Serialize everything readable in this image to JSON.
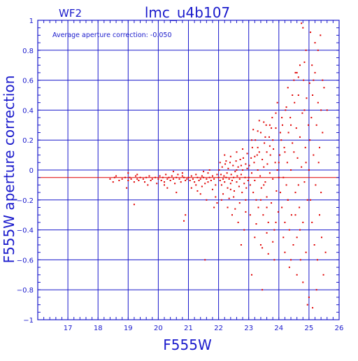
{
  "colors": {
    "axes": "#1a1acc",
    "grid": "#1a1acc",
    "points": "#e00000",
    "mean_line": "#e00000",
    "background": "#ffffff"
  },
  "chart_data": {
    "type": "scatter",
    "panel_label": "WF2",
    "title": "lmc_u4b107",
    "annotation": "Average aperture correction: -0.050",
    "xlabel": "F555W",
    "ylabel": "F555W aperture correction",
    "xlim": [
      16,
      26
    ],
    "ylim": [
      -1,
      1
    ],
    "xticks": [
      17,
      18,
      19,
      20,
      21,
      22,
      23,
      24,
      25,
      26
    ],
    "yticks": [
      -1,
      -0.8,
      -0.6,
      -0.4,
      -0.2,
      0,
      0.2,
      0.4,
      0.6,
      0.8,
      1
    ],
    "ytick_labels": [
      "−1",
      "−0.8",
      "−0.6",
      "−0.4",
      "−0.2",
      "0",
      "0.2",
      "0.4",
      "0.6",
      "0.8",
      "1"
    ],
    "grid": true,
    "mean_line_y": -0.05,
    "points": [
      [
        18.4,
        -0.06
      ],
      [
        18.5,
        -0.08
      ],
      [
        18.55,
        -0.05
      ],
      [
        18.6,
        -0.04
      ],
      [
        18.7,
        -0.07
      ],
      [
        18.8,
        -0.06
      ],
      [
        18.9,
        -0.05
      ],
      [
        19.0,
        -0.07
      ],
      [
        19.05,
        -0.05
      ],
      [
        19.1,
        -0.06
      ],
      [
        19.2,
        -0.08
      ],
      [
        19.25,
        -0.04
      ],
      [
        19.3,
        -0.06
      ],
      [
        19.35,
        -0.07
      ],
      [
        19.4,
        -0.05
      ],
      [
        19.5,
        -0.06
      ],
      [
        19.55,
        -0.08
      ],
      [
        19.6,
        -0.05
      ],
      [
        19.7,
        -0.04
      ],
      [
        19.75,
        -0.07
      ],
      [
        19.8,
        -0.06
      ],
      [
        19.9,
        -0.05
      ],
      [
        19.95,
        -0.09
      ],
      [
        19.0,
        -0.02
      ],
      [
        19.3,
        -0.03
      ],
      [
        19.65,
        -0.1
      ],
      [
        19.2,
        -0.23
      ],
      [
        18.95,
        -0.12
      ],
      [
        20.0,
        -0.06
      ],
      [
        20.05,
        -0.04
      ],
      [
        20.1,
        -0.07
      ],
      [
        20.15,
        -0.05
      ],
      [
        20.2,
        -0.08
      ],
      [
        20.25,
        -0.03
      ],
      [
        20.3,
        -0.06
      ],
      [
        20.35,
        -0.05
      ],
      [
        20.4,
        -0.07
      ],
      [
        20.45,
        -0.04
      ],
      [
        20.5,
        -0.06
      ],
      [
        20.55,
        -0.09
      ],
      [
        20.6,
        -0.05
      ],
      [
        20.65,
        -0.03
      ],
      [
        20.7,
        -0.06
      ],
      [
        20.75,
        -0.08
      ],
      [
        20.8,
        -0.04
      ],
      [
        20.85,
        -0.05
      ],
      [
        20.9,
        -0.07
      ],
      [
        20.95,
        -0.06
      ],
      [
        20.3,
        -0.12
      ],
      [
        20.6,
        -0.15
      ],
      [
        20.8,
        -0.02
      ],
      [
        20.5,
        -0.01
      ],
      [
        20.9,
        -0.3
      ],
      [
        20.85,
        -0.34
      ],
      [
        20.2,
        -0.1
      ],
      [
        21.0,
        -0.05
      ],
      [
        21.05,
        -0.07
      ],
      [
        21.1,
        -0.04
      ],
      [
        21.15,
        -0.06
      ],
      [
        21.2,
        -0.08
      ],
      [
        21.25,
        -0.03
      ],
      [
        21.3,
        -0.05
      ],
      [
        21.35,
        -0.07
      ],
      [
        21.4,
        -0.06
      ],
      [
        21.45,
        -0.04
      ],
      [
        21.5,
        -0.05
      ],
      [
        21.55,
        -0.09
      ],
      [
        21.6,
        -0.06
      ],
      [
        21.65,
        -0.02
      ],
      [
        21.7,
        -0.05
      ],
      [
        21.75,
        -0.07
      ],
      [
        21.8,
        -0.04
      ],
      [
        21.85,
        -0.06
      ],
      [
        21.9,
        -0.1
      ],
      [
        21.95,
        -0.03
      ],
      [
        21.1,
        -0.12
      ],
      [
        21.3,
        -0.14
      ],
      [
        21.5,
        -0.01
      ],
      [
        21.7,
        0.0
      ],
      [
        21.4,
        -0.16
      ],
      [
        21.6,
        -0.2
      ],
      [
        21.8,
        -0.13
      ],
      [
        21.9,
        -0.18
      ],
      [
        21.25,
        -0.1
      ],
      [
        21.45,
        -0.11
      ],
      [
        21.55,
        -0.6
      ],
      [
        21.85,
        -0.25
      ],
      [
        21.65,
        -0.08
      ],
      [
        21.95,
        -0.22
      ],
      [
        22.0,
        -0.05
      ],
      [
        22.02,
        0.0
      ],
      [
        22.05,
        -0.07
      ],
      [
        22.08,
        -0.03
      ],
      [
        22.1,
        -0.1
      ],
      [
        22.12,
        0.02
      ],
      [
        22.15,
        -0.06
      ],
      [
        22.18,
        -0.04
      ],
      [
        22.2,
        -0.08
      ],
      [
        22.22,
        0.04
      ],
      [
        22.25,
        -0.05
      ],
      [
        22.28,
        -0.02
      ],
      [
        22.3,
        -0.12
      ],
      [
        22.32,
        0.01
      ],
      [
        22.35,
        -0.06
      ],
      [
        22.38,
        0.05
      ],
      [
        22.4,
        -0.09
      ],
      [
        22.42,
        -0.03
      ],
      [
        22.45,
        -0.07
      ],
      [
        22.48,
        0.03
      ],
      [
        22.5,
        -0.05
      ],
      [
        22.52,
        -0.14
      ],
      [
        22.55,
        -0.01
      ],
      [
        22.58,
        0.06
      ],
      [
        22.6,
        -0.08
      ],
      [
        22.62,
        -0.04
      ],
      [
        22.65,
        0.02
      ],
      [
        22.68,
        -0.11
      ],
      [
        22.7,
        -0.06
      ],
      [
        22.72,
        0.07
      ],
      [
        22.75,
        -0.03
      ],
      [
        22.78,
        -0.15
      ],
      [
        22.8,
        0.0
      ],
      [
        22.82,
        0.08
      ],
      [
        22.85,
        -0.09
      ],
      [
        22.88,
        -0.05
      ],
      [
        22.9,
        0.04
      ],
      [
        22.92,
        -0.12
      ],
      [
        22.95,
        0.01
      ],
      [
        22.98,
        -0.07
      ],
      [
        22.1,
        -0.2
      ],
      [
        22.3,
        -0.25
      ],
      [
        22.5,
        -0.18
      ],
      [
        22.7,
        -0.22
      ],
      [
        22.9,
        -0.28
      ],
      [
        22.2,
        0.1
      ],
      [
        22.4,
        0.09
      ],
      [
        22.6,
        0.12
      ],
      [
        22.8,
        0.14
      ],
      [
        22.95,
        0.11
      ],
      [
        22.15,
        -0.16
      ],
      [
        22.45,
        -0.3
      ],
      [
        22.65,
        -0.35
      ],
      [
        22.85,
        -0.4
      ],
      [
        22.75,
        -0.5
      ],
      [
        22.55,
        -0.26
      ],
      [
        22.35,
        -0.19
      ],
      [
        22.05,
        0.05
      ],
      [
        22.25,
        0.06
      ],
      [
        22.75,
        0.03
      ],
      [
        22.9,
        -0.2
      ],
      [
        22.6,
        0.0
      ],
      [
        22.4,
        -0.13
      ],
      [
        23.0,
        -0.05
      ],
      [
        23.02,
        0.03
      ],
      [
        23.05,
        -0.1
      ],
      [
        23.08,
        0.08
      ],
      [
        23.1,
        -0.02
      ],
      [
        23.12,
        0.15
      ],
      [
        23.15,
        -0.15
      ],
      [
        23.18,
        0.05
      ],
      [
        23.2,
        -0.07
      ],
      [
        23.22,
        0.2
      ],
      [
        23.25,
        -0.2
      ],
      [
        23.28,
        0.1
      ],
      [
        23.3,
        0.0
      ],
      [
        23.32,
        -0.25
      ],
      [
        23.35,
        0.12
      ],
      [
        23.38,
        -0.04
      ],
      [
        23.4,
        0.25
      ],
      [
        23.42,
        -0.12
      ],
      [
        23.45,
        0.07
      ],
      [
        23.48,
        -0.3
      ],
      [
        23.5,
        0.02
      ],
      [
        23.52,
        0.18
      ],
      [
        23.55,
        -0.08
      ],
      [
        23.58,
        0.3
      ],
      [
        23.6,
        -0.18
      ],
      [
        23.62,
        0.04
      ],
      [
        23.65,
        -0.35
      ],
      [
        23.68,
        0.22
      ],
      [
        23.7,
        -0.02
      ],
      [
        23.72,
        0.1
      ],
      [
        23.75,
        -0.22
      ],
      [
        23.78,
        0.35
      ],
      [
        23.8,
        -0.06
      ],
      [
        23.82,
        0.14
      ],
      [
        23.85,
        -0.4
      ],
      [
        23.88,
        0.05
      ],
      [
        23.9,
        0.28
      ],
      [
        23.92,
        -0.14
      ],
      [
        23.95,
        0.0
      ],
      [
        23.98,
        -0.28
      ],
      [
        23.1,
        0.2
      ],
      [
        23.3,
        0.26
      ],
      [
        23.5,
        0.32
      ],
      [
        23.7,
        0.3
      ],
      [
        23.9,
        0.38
      ],
      [
        23.2,
        -0.45
      ],
      [
        23.4,
        -0.5
      ],
      [
        23.6,
        -0.42
      ],
      [
        23.8,
        -0.48
      ],
      [
        23.15,
        0.27
      ],
      [
        23.35,
        0.33
      ],
      [
        23.55,
        0.22
      ],
      [
        23.75,
        0.28
      ],
      [
        23.95,
        0.45
      ],
      [
        23.05,
        -0.3
      ],
      [
        23.25,
        -0.36
      ],
      [
        23.45,
        -0.52
      ],
      [
        23.65,
        -0.56
      ],
      [
        23.85,
        -0.6
      ],
      [
        23.1,
        -0.7
      ],
      [
        23.45,
        -0.8
      ],
      [
        23.6,
        -0.25
      ],
      [
        23.3,
        0.15
      ],
      [
        23.9,
        -0.35
      ],
      [
        23.7,
        0.16
      ],
      [
        23.5,
        -0.1
      ],
      [
        23.2,
        0.09
      ],
      [
        23.4,
        -0.2
      ],
      [
        23.8,
        0.2
      ],
      [
        23.6,
        0.12
      ],
      [
        24.0,
        -0.05
      ],
      [
        24.03,
        0.1
      ],
      [
        24.05,
        -0.15
      ],
      [
        24.08,
        0.2
      ],
      [
        24.1,
        -0.25
      ],
      [
        24.12,
        0.3
      ],
      [
        24.15,
        -0.05
      ],
      [
        24.18,
        0.15
      ],
      [
        24.2,
        -0.35
      ],
      [
        24.22,
        0.4
      ],
      [
        24.25,
        -0.1
      ],
      [
        24.28,
        0.05
      ],
      [
        24.3,
        -0.2
      ],
      [
        24.32,
        0.25
      ],
      [
        24.35,
        -0.4
      ],
      [
        24.38,
        0.35
      ],
      [
        24.4,
        0.0
      ],
      [
        24.42,
        -0.3
      ],
      [
        24.45,
        0.18
      ],
      [
        24.48,
        -0.5
      ],
      [
        24.5,
        0.12
      ],
      [
        24.52,
        0.45
      ],
      [
        24.55,
        -0.15
      ],
      [
        24.58,
        0.28
      ],
      [
        24.6,
        -0.45
      ],
      [
        24.62,
        0.08
      ],
      [
        24.65,
        0.5
      ],
      [
        24.68,
        -0.25
      ],
      [
        24.7,
        0.22
      ],
      [
        24.72,
        -0.6
      ],
      [
        24.75,
        0.02
      ],
      [
        24.78,
        0.38
      ],
      [
        24.8,
        -0.35
      ],
      [
        24.82,
        0.6
      ],
      [
        24.85,
        -0.08
      ],
      [
        24.88,
        0.15
      ],
      [
        24.9,
        -0.55
      ],
      [
        24.92,
        0.48
      ],
      [
        24.95,
        -0.2
      ],
      [
        24.98,
        0.3
      ],
      [
        24.1,
        0.35
      ],
      [
        24.3,
        0.55
      ],
      [
        24.5,
        0.6
      ],
      [
        24.7,
        0.7
      ],
      [
        24.9,
        0.8
      ],
      [
        24.2,
        -0.55
      ],
      [
        24.4,
        -0.6
      ],
      [
        24.6,
        -0.7
      ],
      [
        24.8,
        -0.75
      ],
      [
        24.95,
        -0.9
      ],
      [
        24.25,
        0.42
      ],
      [
        24.45,
        0.5
      ],
      [
        24.65,
        0.62
      ],
      [
        24.85,
        0.72
      ],
      [
        24.75,
        0.98
      ],
      [
        24.6,
        0.65
      ],
      [
        24.35,
        -0.65
      ],
      [
        24.55,
        -0.3
      ],
      [
        24.15,
        -0.45
      ],
      [
        24.05,
        0.25
      ],
      [
        24.7,
        -0.4
      ],
      [
        24.9,
        0.05
      ],
      [
        24.0,
        0.05
      ],
      [
        24.8,
        0.95
      ],
      [
        24.85,
        0.4
      ],
      [
        24.65,
        -0.1
      ],
      [
        24.4,
        0.3
      ],
      [
        24.2,
        0.12
      ],
      [
        24.55,
        0.65
      ],
      [
        24.3,
        -0.2
      ],
      [
        25.0,
        0.0
      ],
      [
        25.03,
        0.2
      ],
      [
        25.05,
        -0.2
      ],
      [
        25.08,
        0.35
      ],
      [
        25.1,
        -0.35
      ],
      [
        25.12,
        0.5
      ],
      [
        25.15,
        0.1
      ],
      [
        25.18,
        -0.5
      ],
      [
        25.2,
        0.65
      ],
      [
        25.22,
        -0.1
      ],
      [
        25.25,
        0.3
      ],
      [
        25.28,
        -0.6
      ],
      [
        25.3,
        0.8
      ],
      [
        25.32,
        0.05
      ],
      [
        25.35,
        -0.3
      ],
      [
        25.38,
        0.9
      ],
      [
        25.4,
        0.4
      ],
      [
        25.42,
        -0.45
      ],
      [
        25.45,
        0.25
      ],
      [
        25.48,
        -0.7
      ],
      [
        25.5,
        0.55
      ],
      [
        25.1,
        0.7
      ],
      [
        25.2,
        0.85
      ],
      [
        25.3,
        0.45
      ],
      [
        25.05,
        0.92
      ],
      [
        25.25,
        -0.8
      ],
      [
        25.15,
        0.6
      ],
      [
        25.35,
        0.15
      ],
      [
        25.45,
        0.6
      ],
      [
        25.55,
        -0.55
      ],
      [
        25.6,
        0.4
      ],
      [
        25.0,
        -0.85
      ],
      [
        25.12,
        -0.92
      ],
      [
        25.4,
        -0.15
      ],
      [
        25.02,
        0.58
      ]
    ]
  }
}
